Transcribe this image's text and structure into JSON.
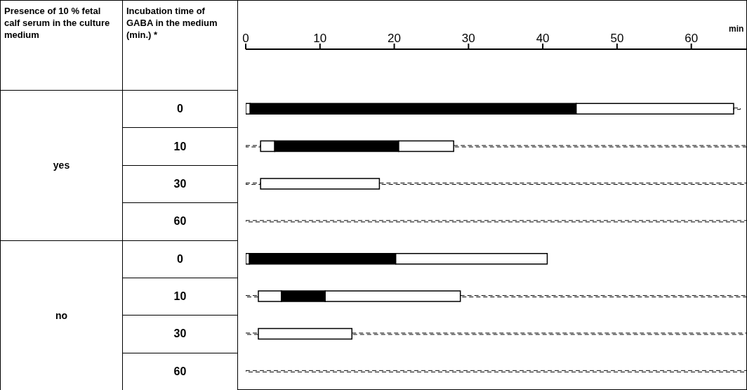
{
  "chart_data": {
    "type": "bar",
    "orientation": "horizontal",
    "stacked": true,
    "ylabel": "Incubation time of GABA in the medium (min.) *",
    "xlabel": "min",
    "annotations": [
      "Presence of 10 % fetal calf serum in the culture medium",
      "yes",
      "no"
    ],
    "categories": [
      "0",
      "10",
      "30",
      "60",
      "0",
      "10",
      "30",
      "60"
    ],
    "series": [
      {
        "color": "#000000",
        "line_style": "dashed",
        "values": [
          0,
          2.0,
          2.0,
          0,
          0,
          1.7,
          1.7,
          0
        ]
      },
      {
        "color": "#ffffff",
        "values": [
          0.6,
          1.9,
          16.0,
          0,
          0.5,
          3.1,
          12.6,
          0
        ]
      },
      {
        "color": "#000000",
        "values": [
          43.9,
          16.7,
          0,
          0,
          19.7,
          5.9,
          0,
          0
        ]
      },
      {
        "color": "#ffffff",
        "values": [
          21.2,
          7.4,
          0,
          0,
          20.4,
          18.2,
          0,
          0
        ]
      },
      {
        "color": "#000000",
        "line_style": "dashed",
        "values": [
          0.9,
          39.5,
          49.5,
          67.5,
          0,
          38.6,
          53.2,
          67.5
        ]
      }
    ],
    "xlim": [
      0,
      67.5
    ],
    "xticks": [
      0,
      10,
      20,
      30,
      40,
      50,
      60
    ]
  }
}
